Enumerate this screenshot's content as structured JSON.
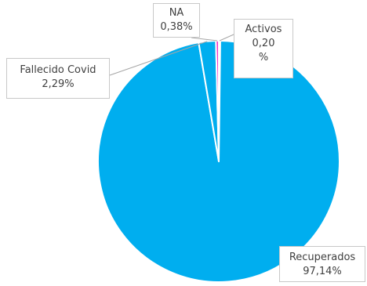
{
  "chart_data": {
    "type": "pie",
    "slices": [
      {
        "label": "Activos",
        "value": 0.2,
        "value_text_lines": [
          "0,20",
          "%"
        ],
        "color": "#ffffff"
      },
      {
        "label": "Recuperados",
        "value": 97.14,
        "value_text_lines": [
          "97,14%"
        ],
        "color": "#00aeef"
      },
      {
        "label": "Fallecido Covid",
        "value": 2.29,
        "value_text_lines": [
          "2,29%"
        ],
        "color": "#00aeef"
      },
      {
        "label": "NA",
        "value": 0.38,
        "value_text_lines": [
          "0,38%"
        ],
        "color": "#f033c8"
      }
    ],
    "unit": "%",
    "legend": "none",
    "slice_border_color": "#ffffff",
    "label_box_border_color": "#c8c8c8"
  }
}
